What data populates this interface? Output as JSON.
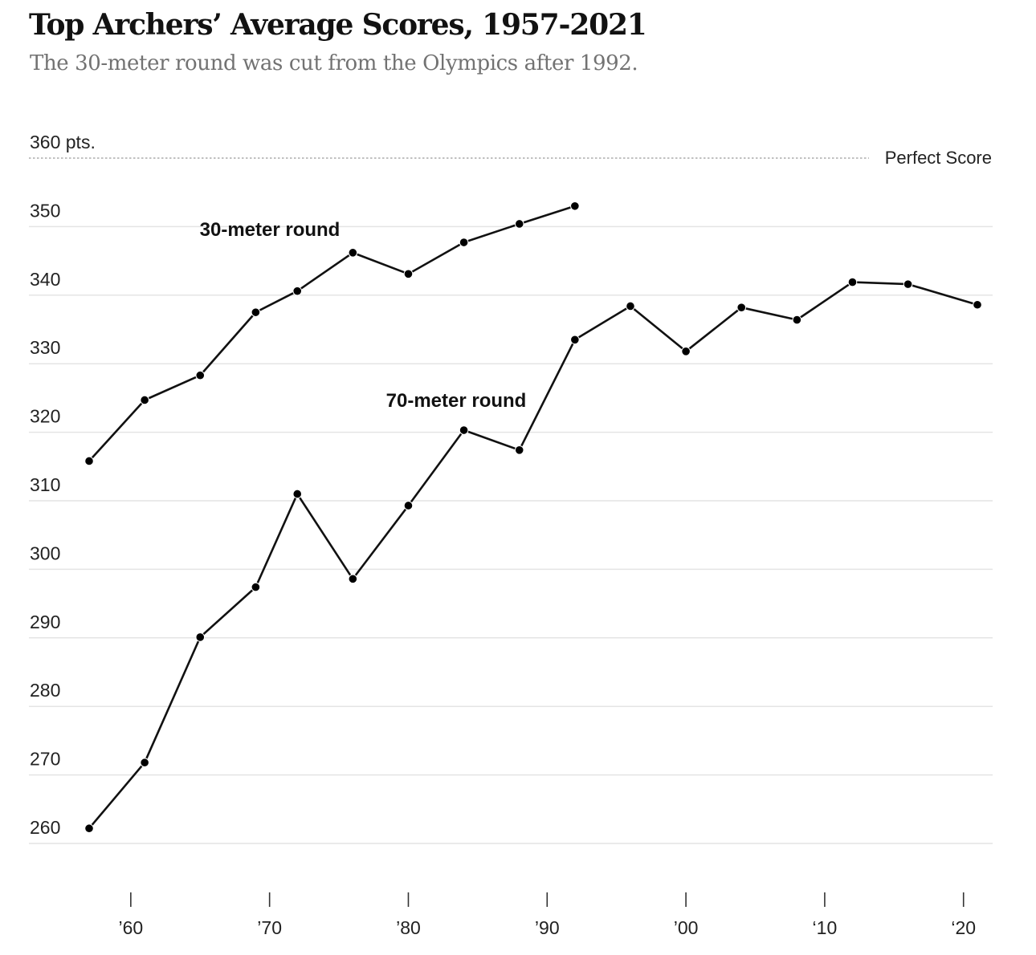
{
  "title": "Top Archers’ Average Scores, 1957-2021",
  "subtitle": "The 30-meter round was cut from the Olympics after 1992.",
  "chart_data": {
    "type": "line",
    "title": "Top Archers’ Average Scores, 1957-2021",
    "subtitle": "The 30-meter round was cut from the Olympics after 1992.",
    "ylim": [
      260,
      360
    ],
    "xlim": [
      1957,
      2021
    ],
    "yticks": [
      {
        "value": 260,
        "label": "260"
      },
      {
        "value": 270,
        "label": "270"
      },
      {
        "value": 280,
        "label": "280"
      },
      {
        "value": 290,
        "label": "290"
      },
      {
        "value": 300,
        "label": "300"
      },
      {
        "value": 310,
        "label": "310"
      },
      {
        "value": 320,
        "label": "320"
      },
      {
        "value": 330,
        "label": "330"
      },
      {
        "value": 340,
        "label": "340"
      },
      {
        "value": 350,
        "label": "350"
      },
      {
        "value": 360,
        "label": "360 pts."
      }
    ],
    "xticks": [
      {
        "value": 1960,
        "label": "’60"
      },
      {
        "value": 1970,
        "label": "’70"
      },
      {
        "value": 1980,
        "label": "’80"
      },
      {
        "value": 1990,
        "label": "’90"
      },
      {
        "value": 2000,
        "label": "’00"
      },
      {
        "value": 2010,
        "label": "‘10"
      },
      {
        "value": 2020,
        "label": "‘20"
      }
    ],
    "reference_line": {
      "value": 360,
      "label": "Perfect Score",
      "style": "dotted"
    },
    "grid": true,
    "series": [
      {
        "name": "30-meter round",
        "x": [
          1957,
          1961,
          1965,
          1969,
          1972,
          1976,
          1980,
          1984,
          1988,
          1992
        ],
        "y": [
          315.8,
          324.7,
          328.3,
          337.5,
          340.6,
          346.2,
          343.1,
          347.7,
          350.4,
          353.0
        ]
      },
      {
        "name": "70-meter round",
        "x": [
          1957,
          1961,
          1965,
          1969,
          1972,
          1976,
          1980,
          1984,
          1988,
          1992,
          1996,
          2000,
          2004,
          2008,
          2012,
          2016,
          2021
        ],
        "y": [
          262.2,
          271.8,
          290.1,
          297.4,
          311.0,
          298.6,
          309.3,
          320.3,
          317.4,
          333.5,
          338.4,
          331.8,
          338.2,
          336.4,
          341.9,
          341.6,
          338.6
        ]
      }
    ]
  }
}
